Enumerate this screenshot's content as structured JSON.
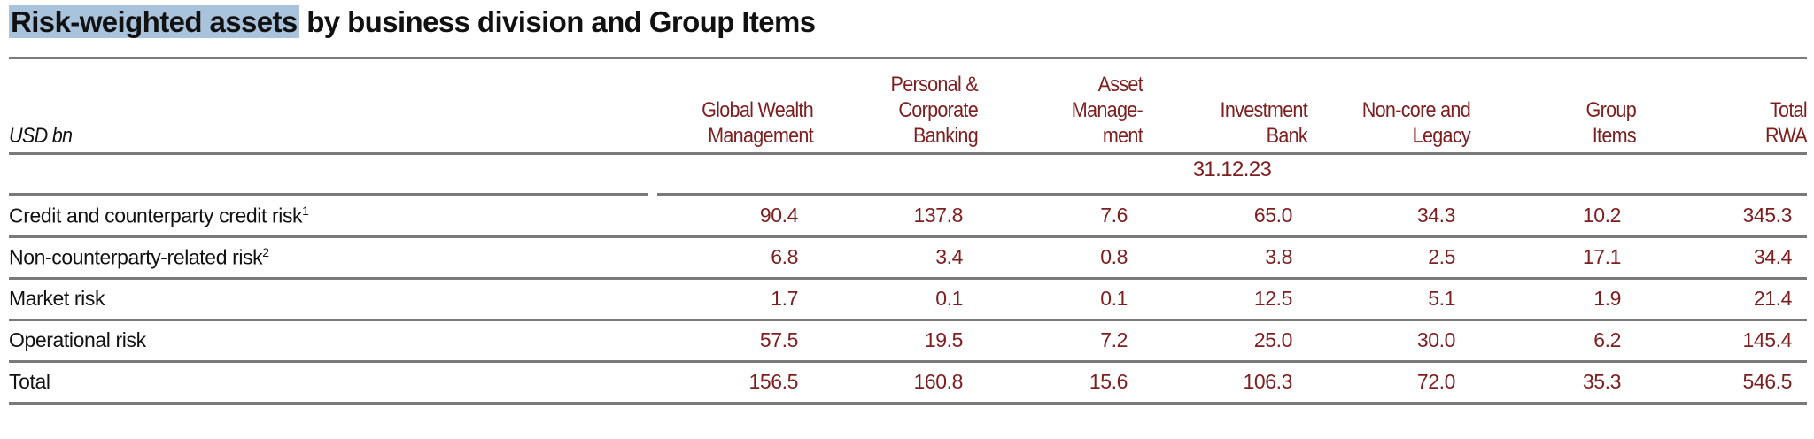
{
  "title": {
    "highlighted": "Risk-weighted assets",
    "rest": " by business division and Group Items"
  },
  "unit": "USD bn",
  "columns": [
    [
      "Global Wealth",
      "Management"
    ],
    [
      "Personal &",
      "Corporate",
      "Banking"
    ],
    [
      "Asset",
      "Manage-",
      "ment"
    ],
    [
      "Investment",
      "Bank"
    ],
    [
      "Non-core and",
      "Legacy"
    ],
    [
      "Group",
      "Items"
    ],
    [
      "Total",
      "RWA"
    ]
  ],
  "date": "31.12.23",
  "rows": [
    {
      "label": "Credit and counterparty credit risk",
      "sup": "1",
      "values": [
        "90.4",
        "137.8",
        "7.6",
        "65.0",
        "34.3",
        "10.2",
        "345.3"
      ]
    },
    {
      "label": "Non-counterparty-related risk",
      "sup": "2",
      "values": [
        "6.8",
        "3.4",
        "0.8",
        "3.8",
        "2.5",
        "17.1",
        "34.4"
      ]
    },
    {
      "label": "Market risk",
      "sup": "",
      "values": [
        "1.7",
        "0.1",
        "0.1",
        "12.5",
        "5.1",
        "1.9",
        "21.4"
      ]
    },
    {
      "label": "Operational risk",
      "sup": "",
      "values": [
        "57.5",
        "19.5",
        "7.2",
        "25.0",
        "30.0",
        "6.2",
        "145.4"
      ]
    },
    {
      "label": "Total",
      "sup": "",
      "values": [
        "156.5",
        "160.8",
        "15.6",
        "106.3",
        "72.0",
        "35.3",
        "546.5"
      ]
    }
  ],
  "colors": {
    "accent": "#7d1f1f",
    "highlight": "#a9c3dc",
    "rule": "#7a7a7a"
  }
}
